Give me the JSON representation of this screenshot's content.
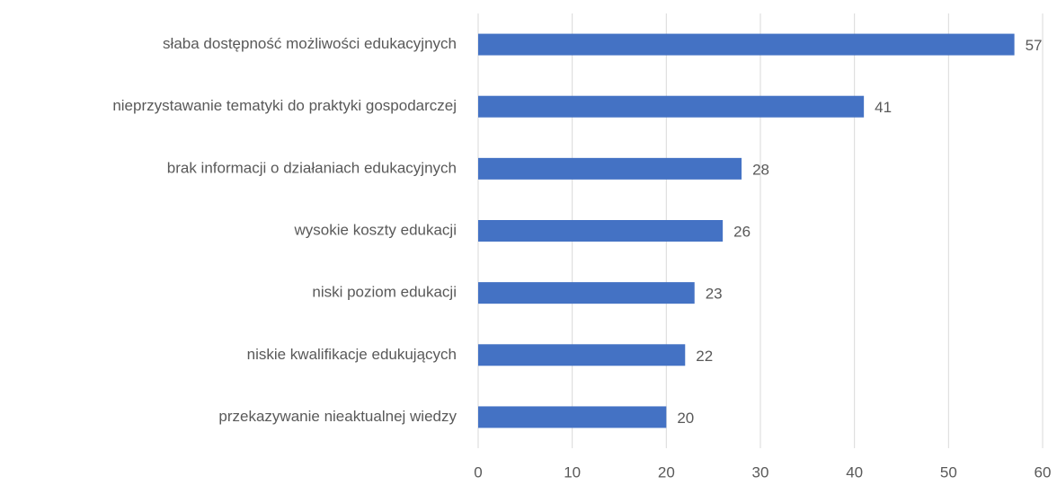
{
  "chart_data": {
    "type": "bar",
    "orientation": "horizontal",
    "categories": [
      "słaba dostępność możliwości edukacyjnych",
      "nieprzystawanie tematyki do praktyki gospodarczej",
      "brak informacji o działaniach edukacyjnych",
      "wysokie koszty edukacji",
      "niski poziom edukacji",
      "niskie kwalifikacje edukujących",
      "przekazywanie nieaktualnej wiedzy"
    ],
    "values": [
      57,
      41,
      28,
      26,
      23,
      22,
      20
    ],
    "color": "#4472c4",
    "xlim": [
      0,
      60
    ],
    "xticks": [
      0,
      10,
      20,
      30,
      40,
      50,
      60
    ],
    "grid": true
  }
}
